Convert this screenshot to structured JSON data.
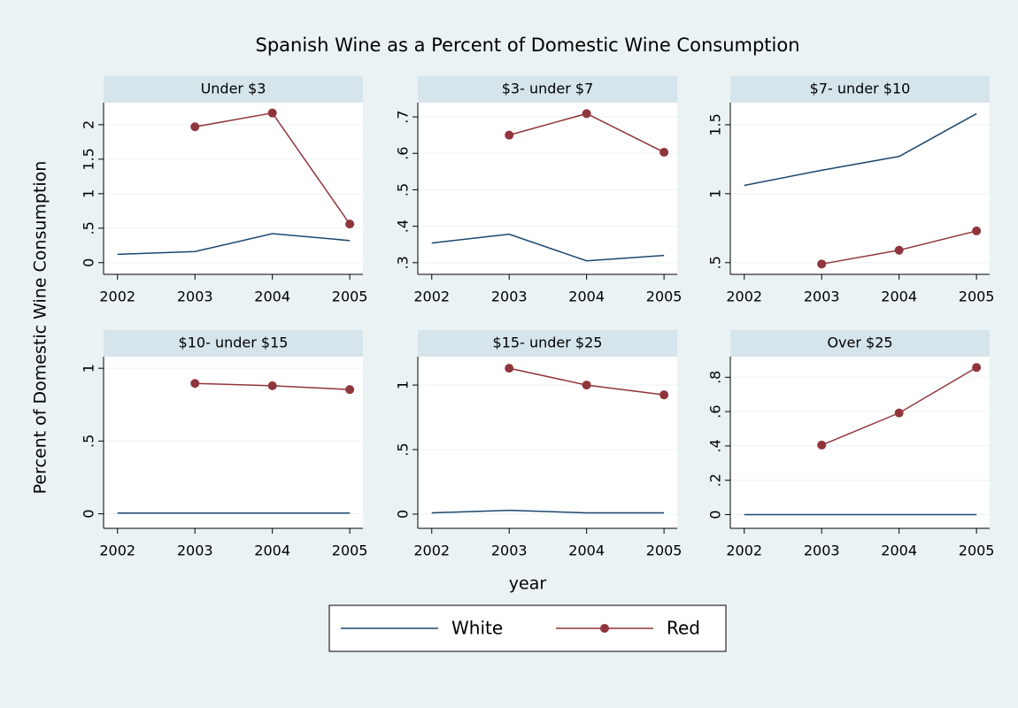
{
  "title": "Spanish Wine as a Percent of Domestic Wine Consumption",
  "ylabel": "Percent of Domestic Wine Consumption",
  "xlabel": "year",
  "chart_data": [
    {
      "type": "line",
      "title": "Under $3",
      "x": [
        2002,
        2003,
        2004,
        2005
      ],
      "xlim": [
        2001.82,
        2005.17
      ],
      "xticks": [
        2002,
        2003,
        2004,
        2005
      ],
      "ylim": [
        -0.17,
        2.32
      ],
      "yticks": [
        0,
        {
          "value": 0.5,
          "label": ".5"
        },
        1,
        1.5,
        2
      ],
      "grid": true,
      "series": [
        {
          "name": "White",
          "color": "#1a476f",
          "values": [
            0.12,
            0.16,
            0.42,
            0.32
          ]
        },
        {
          "name": "Red",
          "color": "#90353b",
          "marker": true,
          "values": [
            null,
            1.97,
            2.17,
            0.56
          ]
        }
      ]
    },
    {
      "type": "line",
      "title": "$3- under $7",
      "x": [
        2002,
        2003,
        2004,
        2005
      ],
      "xlim": [
        2001.82,
        2005.17
      ],
      "xticks": [
        2002,
        2003,
        2004,
        2005
      ],
      "ylim": [
        0.268,
        0.739
      ],
      "yticks": [
        {
          "value": 0.3,
          "label": ".3"
        },
        {
          "value": 0.4,
          "label": ".4"
        },
        {
          "value": 0.5,
          "label": ".5"
        },
        {
          "value": 0.6,
          "label": ".6"
        },
        {
          "value": 0.7,
          "label": ".7"
        }
      ],
      "grid": true,
      "series": [
        {
          "name": "White",
          "color": "#1a476f",
          "values": [
            0.354,
            0.378,
            0.305,
            0.32
          ]
        },
        {
          "name": "Red",
          "color": "#90353b",
          "marker": true,
          "values": [
            null,
            0.65,
            0.709,
            0.603
          ]
        }
      ]
    },
    {
      "type": "line",
      "title": "$7- under $10",
      "x": [
        2002,
        2003,
        2004,
        2005
      ],
      "xlim": [
        2001.82,
        2005.17
      ],
      "xticks": [
        2002,
        2003,
        2004,
        2005
      ],
      "ylim": [
        0.415,
        1.66
      ],
      "yticks": [
        {
          "value": 0.5,
          "label": ".5"
        },
        1,
        1.5
      ],
      "grid": true,
      "series": [
        {
          "name": "White",
          "color": "#1a476f",
          "values": [
            1.06,
            1.17,
            1.27,
            1.58
          ]
        },
        {
          "name": "Red",
          "color": "#90353b",
          "marker": true,
          "values": [
            null,
            0.49,
            0.59,
            0.73
          ]
        }
      ]
    },
    {
      "type": "line",
      "title": "$10- under $15",
      "x": [
        2002,
        2003,
        2004,
        2005
      ],
      "xlim": [
        2001.82,
        2005.17
      ],
      "xticks": [
        2002,
        2003,
        2004,
        2005
      ],
      "ylim": [
        -0.1,
        1.08
      ],
      "yticks": [
        0,
        {
          "value": 0.5,
          "label": ".5"
        },
        1
      ],
      "grid": true,
      "series": [
        {
          "name": "White",
          "color": "#1a476f",
          "values": [
            0.005,
            0.005,
            0.005,
            0.005
          ]
        },
        {
          "name": "Red",
          "color": "#90353b",
          "marker": true,
          "values": [
            null,
            0.896,
            0.88,
            0.854
          ]
        }
      ]
    },
    {
      "type": "line",
      "title": "$15- under $25",
      "x": [
        2002,
        2003,
        2004,
        2005
      ],
      "xlim": [
        2001.82,
        2005.17
      ],
      "xticks": [
        2002,
        2003,
        2004,
        2005
      ],
      "ylim": [
        -0.11,
        1.22
      ],
      "yticks": [
        0,
        {
          "value": 0.5,
          "label": ".5"
        },
        1
      ],
      "grid": true,
      "series": [
        {
          "name": "White",
          "color": "#1a476f",
          "values": [
            0.01,
            0.03,
            0.01,
            0.01
          ]
        },
        {
          "name": "Red",
          "color": "#90353b",
          "marker": true,
          "values": [
            null,
            1.13,
            1.0,
            0.924
          ]
        }
      ]
    },
    {
      "type": "line",
      "title": "Over $25",
      "x": [
        2002,
        2003,
        2004,
        2005
      ],
      "xlim": [
        2001.82,
        2005.17
      ],
      "xticks": [
        2002,
        2003,
        2004,
        2005
      ],
      "ylim": [
        -0.08,
        0.92
      ],
      "yticks": [
        0,
        {
          "value": 0.2,
          "label": ".2"
        },
        {
          "value": 0.4,
          "label": ".4"
        },
        {
          "value": 0.6,
          "label": ".6"
        },
        {
          "value": 0.8,
          "label": ".8"
        }
      ],
      "grid": true,
      "series": [
        {
          "name": "White",
          "color": "#1a476f",
          "values": [
            0,
            0,
            0,
            0
          ]
        },
        {
          "name": "Red",
          "color": "#90353b",
          "marker": true,
          "values": [
            null,
            0.405,
            0.592,
            0.857
          ]
        }
      ]
    }
  ]
}
